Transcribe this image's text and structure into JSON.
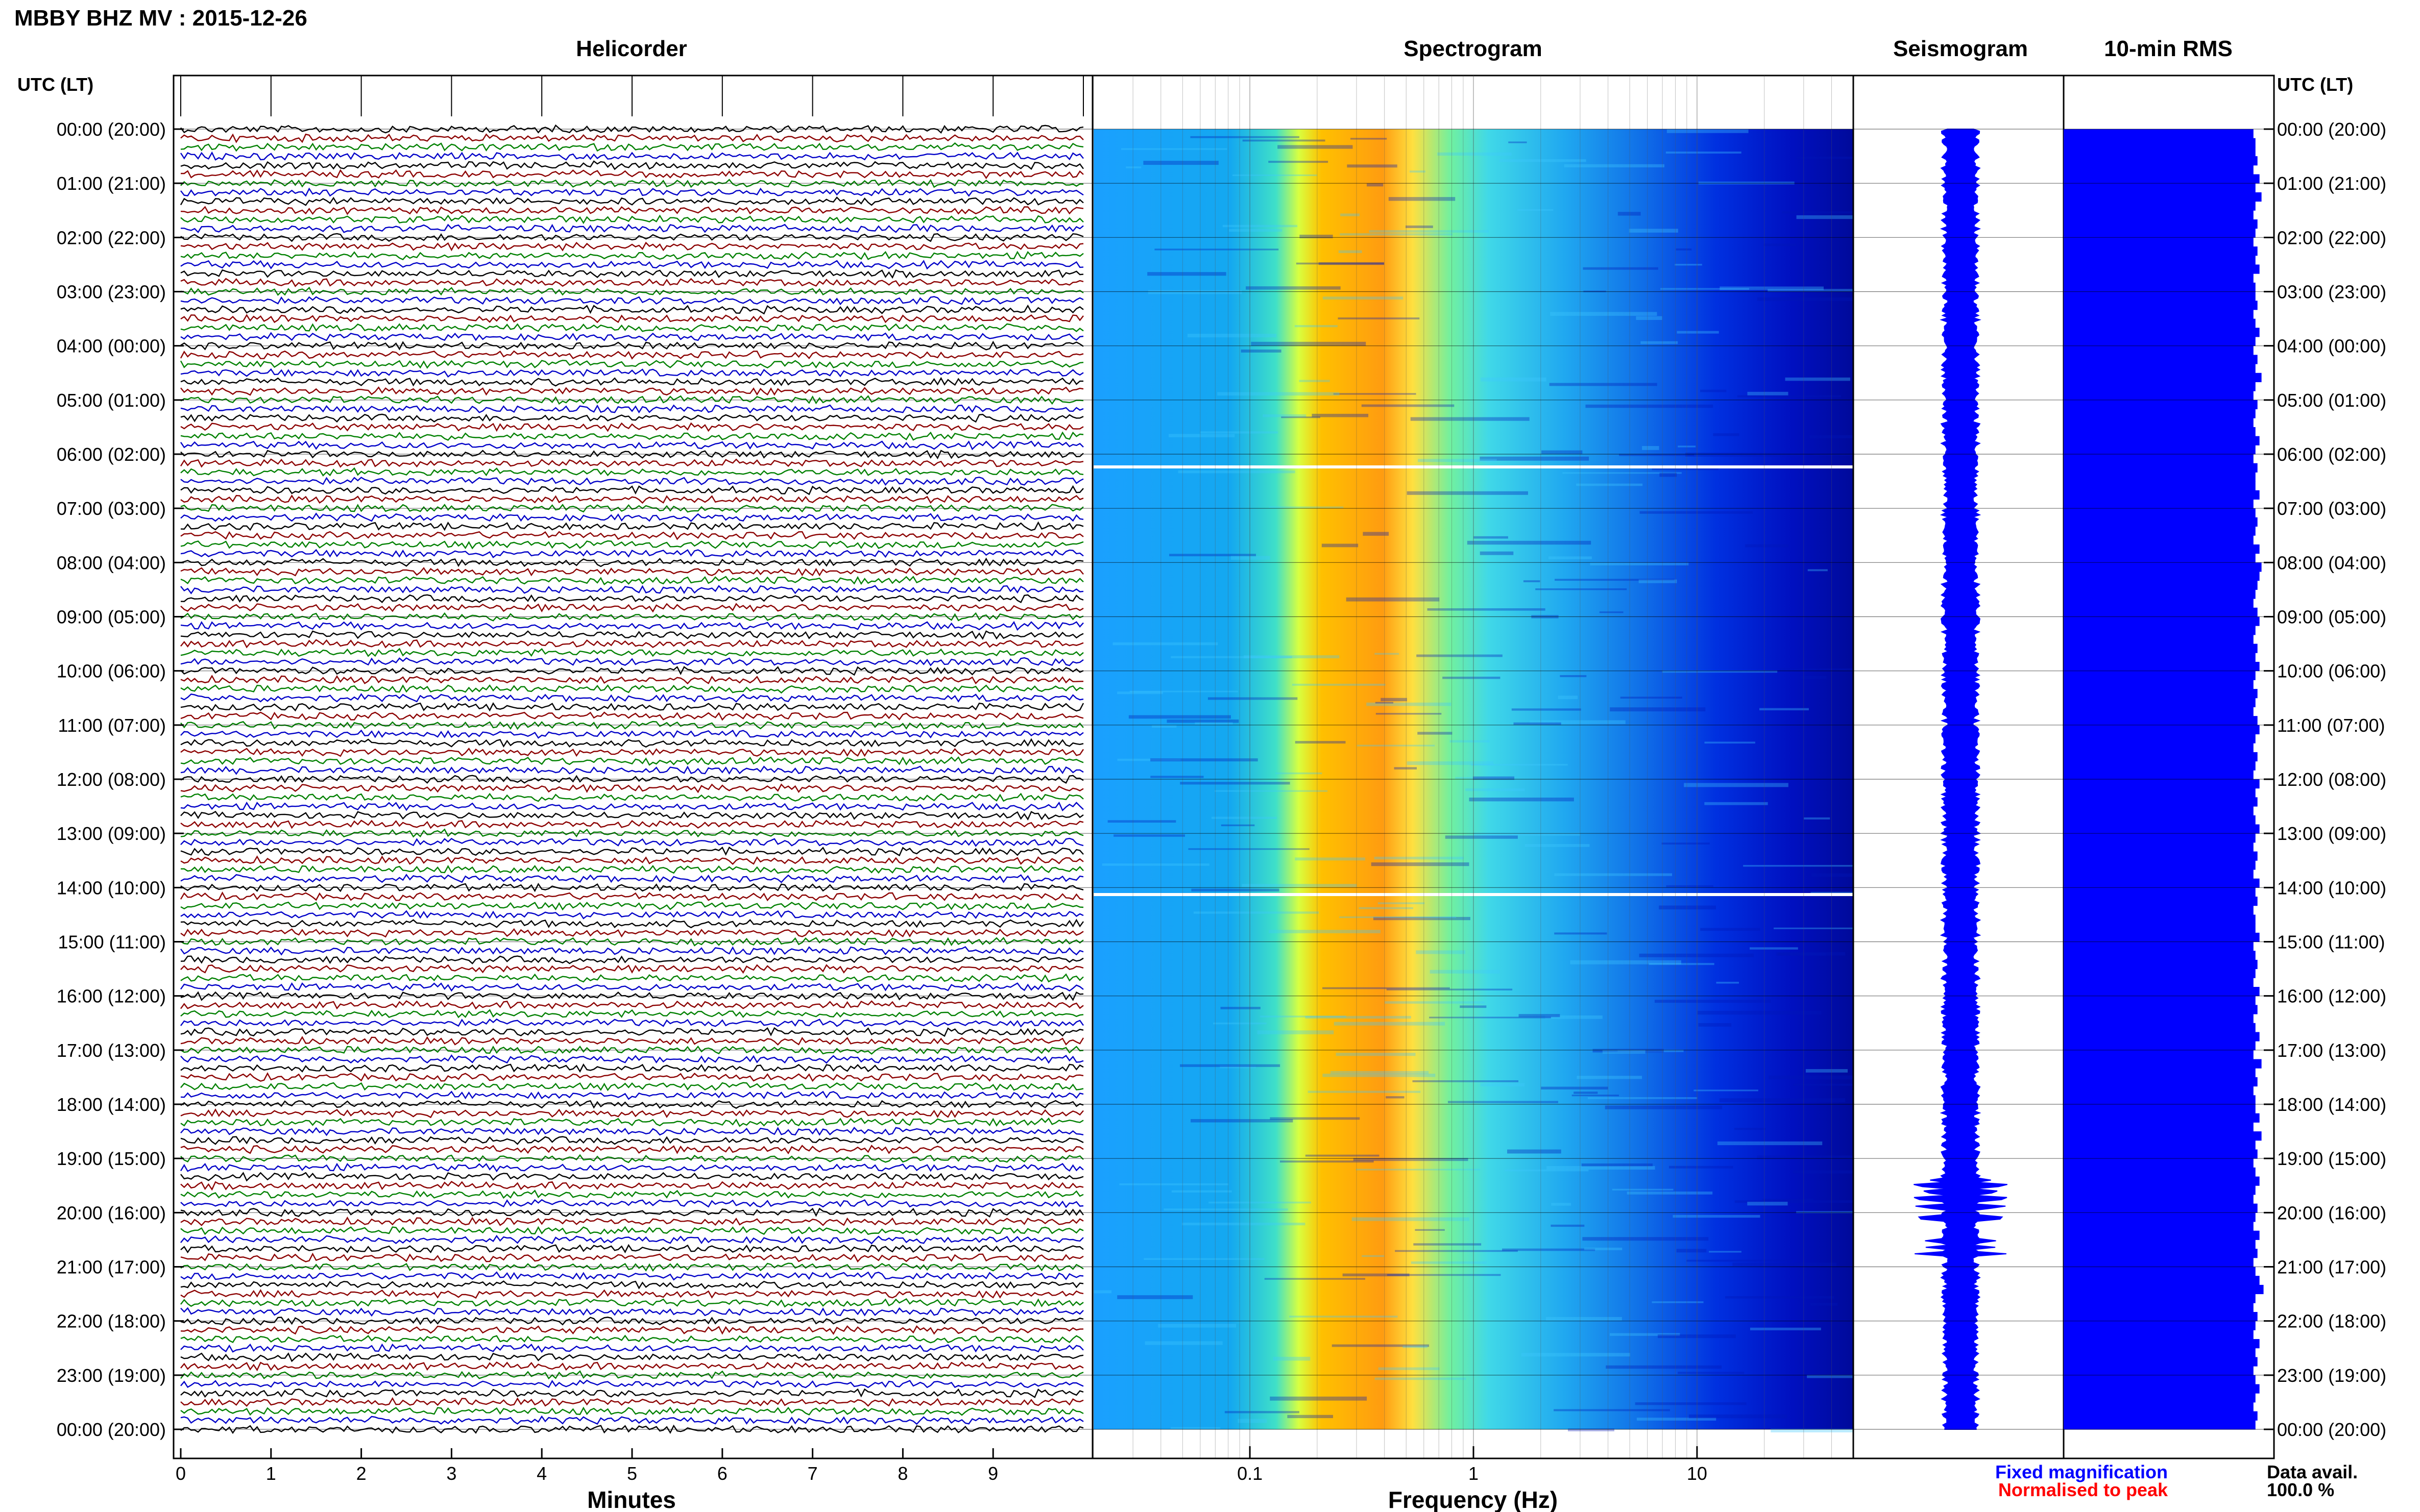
{
  "header": {
    "title": "MBBY BHZ MV : 2015-12-26"
  },
  "panels": {
    "helicorder": "Helicorder",
    "spectrogram": "Spectrogram",
    "seismogram": "Seismogram",
    "rms": "10-min RMS"
  },
  "time_axis": {
    "label_left": "UTC (LT)",
    "label_right": "UTC (LT)",
    "ticks": [
      "00:00 (20:00)",
      "01:00 (21:00)",
      "02:00 (22:00)",
      "03:00 (23:00)",
      "04:00 (00:00)",
      "05:00 (01:00)",
      "06:00 (02:00)",
      "07:00 (03:00)",
      "08:00 (04:00)",
      "09:00 (05:00)",
      "10:00 (06:00)",
      "11:00 (07:00)",
      "12:00 (08:00)",
      "13:00 (09:00)",
      "14:00 (10:00)",
      "15:00 (11:00)",
      "16:00 (12:00)",
      "17:00 (13:00)",
      "18:00 (14:00)",
      "19:00 (15:00)",
      "20:00 (16:00)",
      "21:00 (17:00)",
      "22:00 (18:00)",
      "23:00 (19:00)",
      "00:00 (20:00)"
    ]
  },
  "footer": {
    "fixed_magnification": "Fixed magnification",
    "normalised_to_peak": "Normalised to peak",
    "data_avail_label": "Data avail.",
    "data_avail_value": "100.0 %"
  },
  "colors": {
    "helicorder_traces": [
      "#000000",
      "#8b0000",
      "#008000",
      "#0000c8"
    ],
    "fixed_magnification": "#0000ff",
    "normalised_to_peak": "#ff0000",
    "rms_bar": "#0000ff",
    "seismogram_trace": "#0000ff",
    "spectrogram_colormap": [
      "#00008f",
      "#0000ff",
      "#0080ff",
      "#00ffff",
      "#80ff80",
      "#ffff00",
      "#ff8000",
      "#ff0000"
    ]
  },
  "chart_data": [
    {
      "type": "line",
      "panel": "helicorder",
      "xlabel": "Minutes",
      "x_ticks": [
        "0",
        "1",
        "2",
        "3",
        "4",
        "5",
        "6",
        "7",
        "8",
        "9"
      ],
      "xlim": [
        0,
        10
      ],
      "rows_per_hour": 6,
      "hours": 24
    },
    {
      "type": "heatmap",
      "panel": "spectrogram",
      "xlabel": "Frequency (Hz)",
      "x_scale": "log",
      "x_ticks": [
        "0.1",
        "1",
        "10"
      ],
      "xlim": [
        0.02,
        50
      ],
      "peak_band_hz": [
        0.2,
        0.5
      ],
      "data_gaps_utc": [
        "06:15",
        "14:05"
      ]
    },
    {
      "type": "line",
      "panel": "seismogram",
      "ylim_hours": [
        0,
        24
      ]
    },
    {
      "type": "bar",
      "panel": "rms",
      "orientation": "horizontal",
      "interval_minutes": 10,
      "values": [
        0.94,
        0.95,
        0.95,
        0.96,
        0.94,
        0.97,
        0.95,
        0.98,
        0.95,
        0.94,
        0.96,
        0.95,
        0.94,
        0.96,
        0.95,
        0.97,
        0.94,
        0.95,
        0.95,
        0.96,
        0.94,
        0.95,
        0.97,
        0.95,
        0.94,
        0.96,
        0.95,
        0.98,
        0.95,
        0.94,
        0.96,
        0.95,
        0.94,
        0.95,
        0.97,
        0.95,
        0.94,
        0.96,
        0.95,
        0.95,
        0.97,
        0.94,
        0.95,
        0.96,
        0.95,
        0.94,
        0.97,
        0.95,
        0.98,
        0.97,
        0.96,
        0.95,
        0.94,
        0.96,
        0.97,
        0.95,
        0.94,
        0.96,
        0.95,
        0.97,
        0.95,
        0.94,
        0.96,
        0.95,
        0.94,
        0.96,
        0.97,
        0.95,
        0.94,
        0.96,
        0.95,
        0.94,
        0.97,
        0.95,
        0.96,
        0.94,
        0.95,
        0.97,
        0.95,
        0.94,
        0.96,
        0.95,
        0.94,
        0.97,
        0.95,
        0.96,
        0.94,
        0.95,
        0.95,
        0.97,
        0.94,
        0.95,
        0.96,
        0.95,
        0.94,
        0.97,
        0.95,
        0.96,
        0.94,
        0.95,
        0.97,
        0.95,
        0.94,
        0.98,
        0.95,
        0.96,
        0.94,
        0.95,
        0.95,
        0.97,
        0.94,
        0.98,
        0.95,
        0.96,
        0.94,
        0.95,
        0.97,
        0.95,
        0.94,
        0.96,
        0.95,
        0.94,
        0.97,
        0.95,
        0.96,
        0.94,
        0.95,
        0.97,
        0.99,
        0.95,
        0.94,
        0.96,
        0.95,
        0.94,
        0.97,
        0.95,
        0.96,
        0.94,
        0.95,
        0.97,
        0.95,
        0.94,
        0.96,
        0.95
      ]
    }
  ]
}
